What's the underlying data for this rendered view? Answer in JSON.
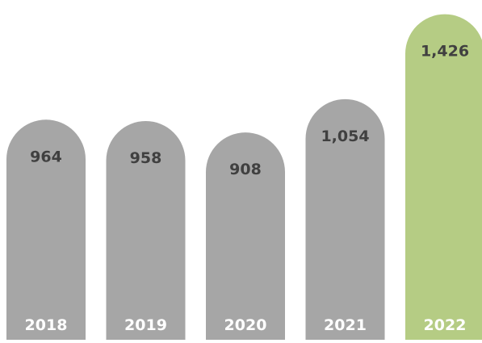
{
  "chart_data": {
    "type": "bar",
    "categories": [
      "2018",
      "2019",
      "2020",
      "2021",
      "2022"
    ],
    "values": [
      964,
      958,
      908,
      1054,
      1426
    ],
    "value_labels": [
      "964",
      "958",
      "908",
      "1,054",
      "1,426"
    ],
    "title": "",
    "xlabel": "",
    "ylabel": "",
    "ylim": [
      0,
      1500
    ],
    "grid": false,
    "legend": "none",
    "bar_colors": [
      "#a6a6a6",
      "#a6a6a6",
      "#a6a6a6",
      "#a6a6a6",
      "#b5cc84"
    ]
  }
}
